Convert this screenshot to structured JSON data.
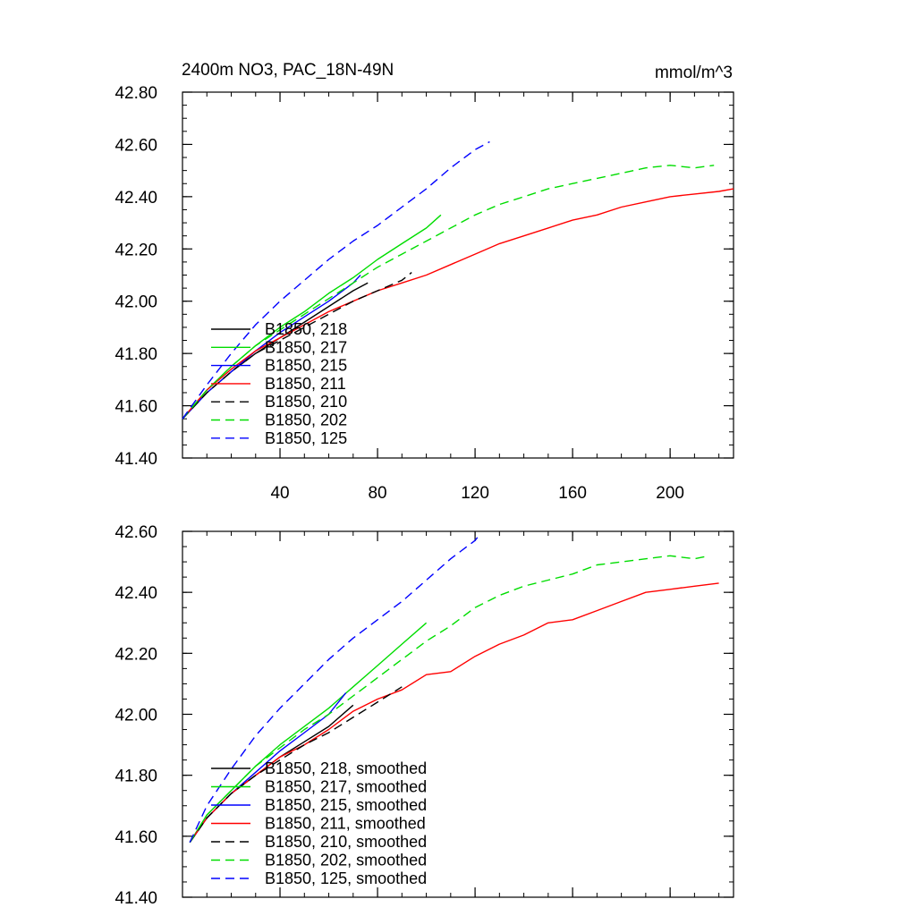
{
  "figure": {
    "title_left": "2400m NO3, PAC_18N-49N",
    "title_right": "mmol/m^3"
  },
  "chart_data": [
    {
      "type": "line",
      "title": "2400m NO3, PAC_18N-49N",
      "units": "mmol/m^3",
      "xlabel": "",
      "ylabel": "",
      "xlim": [
        0,
        226
      ],
      "ylim": [
        41.4,
        42.8
      ],
      "xticks": [
        40,
        80,
        120,
        160,
        200
      ],
      "xtick_labels": [
        "40",
        "80",
        "120",
        "160",
        "200"
      ],
      "yticks": [
        41.4,
        41.6,
        41.8,
        42.0,
        42.2,
        42.4,
        42.6,
        42.8
      ],
      "ytick_labels": [
        "41.40",
        "41.60",
        "41.80",
        "42.00",
        "42.20",
        "42.40",
        "42.60",
        "42.80"
      ],
      "grid": false,
      "legend_position": "lower-left",
      "series": [
        {
          "name": "B1850, 218",
          "color": "#000000",
          "dash": "solid",
          "x": [
            0,
            10,
            20,
            30,
            40,
            50,
            60,
            70,
            76
          ],
          "y": [
            41.55,
            41.65,
            41.73,
            41.8,
            41.86,
            41.92,
            41.98,
            42.04,
            42.07
          ]
        },
        {
          "name": "B1850, 217",
          "color": "#00dd00",
          "dash": "solid",
          "x": [
            0,
            10,
            20,
            30,
            40,
            50,
            60,
            70,
            80,
            90,
            100,
            106
          ],
          "y": [
            41.55,
            41.66,
            41.75,
            41.83,
            41.9,
            41.96,
            42.03,
            42.09,
            42.16,
            42.22,
            42.28,
            42.33
          ]
        },
        {
          "name": "B1850, 215",
          "color": "#0000ff",
          "dash": "solid",
          "x": [
            0,
            10,
            20,
            30,
            40,
            50,
            60,
            70,
            73
          ],
          "y": [
            41.55,
            41.65,
            41.73,
            41.81,
            41.88,
            41.94,
            42.0,
            42.07,
            42.1
          ]
        },
        {
          "name": "B1850, 211",
          "color": "#ff0000",
          "dash": "solid",
          "x": [
            0,
            10,
            20,
            30,
            40,
            50,
            60,
            70,
            80,
            90,
            100,
            110,
            120,
            130,
            140,
            150,
            160,
            170,
            180,
            190,
            200,
            210,
            220,
            226
          ],
          "y": [
            41.55,
            41.66,
            41.74,
            41.81,
            41.86,
            41.91,
            41.96,
            42.0,
            42.04,
            42.07,
            42.1,
            42.14,
            42.18,
            42.22,
            42.25,
            42.28,
            42.31,
            42.33,
            42.36,
            42.38,
            42.4,
            42.41,
            42.42,
            42.43
          ]
        },
        {
          "name": "B1850, 210",
          "color": "#000000",
          "dash": "dashed",
          "x": [
            0,
            10,
            20,
            30,
            40,
            50,
            60,
            70,
            80,
            90,
            94
          ],
          "y": [
            41.55,
            41.65,
            41.73,
            41.8,
            41.85,
            41.9,
            41.95,
            42.0,
            42.04,
            42.08,
            42.11
          ]
        },
        {
          "name": "B1850, 202",
          "color": "#00dd00",
          "dash": "dashed",
          "x": [
            0,
            10,
            20,
            30,
            40,
            50,
            60,
            70,
            80,
            90,
            100,
            110,
            120,
            130,
            140,
            150,
            160,
            170,
            180,
            190,
            200,
            210,
            218
          ],
          "y": [
            41.55,
            41.66,
            41.75,
            41.83,
            41.89,
            41.95,
            42.01,
            42.07,
            42.13,
            42.18,
            42.23,
            42.28,
            42.33,
            42.37,
            42.4,
            42.43,
            42.45,
            42.47,
            42.49,
            42.51,
            42.52,
            42.51,
            42.52
          ]
        },
        {
          "name": "B1850, 125",
          "color": "#0000ff",
          "dash": "dashed",
          "x": [
            0,
            10,
            20,
            30,
            40,
            50,
            60,
            70,
            80,
            90,
            100,
            110,
            120,
            126
          ],
          "y": [
            41.55,
            41.68,
            41.8,
            41.91,
            42.0,
            42.08,
            42.16,
            42.23,
            42.29,
            42.36,
            42.43,
            42.51,
            42.58,
            42.61
          ]
        }
      ]
    },
    {
      "type": "line",
      "title": "",
      "xlabel": "",
      "ylabel": "",
      "xlim": [
        0,
        226
      ],
      "ylim": [
        41.4,
        42.6
      ],
      "xticks": [
        40,
        80,
        120,
        160,
        200
      ],
      "xtick_labels": [
        "",
        "",
        "",
        "",
        ""
      ],
      "yticks": [
        41.4,
        41.6,
        41.8,
        42.0,
        42.2,
        42.4,
        42.6
      ],
      "ytick_labels": [
        "41.40",
        "41.60",
        "41.80",
        "42.00",
        "42.20",
        "42.40",
        "42.60"
      ],
      "grid": false,
      "legend_position": "lower-left",
      "series": [
        {
          "name": "B1850, 218, smoothed",
          "color": "#000000",
          "dash": "solid",
          "x": [
            3,
            10,
            20,
            30,
            40,
            50,
            60,
            70
          ],
          "y": [
            41.58,
            41.66,
            41.74,
            41.8,
            41.86,
            41.91,
            41.96,
            42.03
          ]
        },
        {
          "name": "B1850, 217, smoothed",
          "color": "#00dd00",
          "dash": "solid",
          "x": [
            3,
            10,
            20,
            30,
            40,
            50,
            60,
            70,
            80,
            90,
            100
          ],
          "y": [
            41.58,
            41.67,
            41.75,
            41.83,
            41.9,
            41.96,
            42.02,
            42.09,
            42.16,
            42.23,
            42.3
          ]
        },
        {
          "name": "B1850, 215, smoothed",
          "color": "#0000ff",
          "dash": "solid",
          "x": [
            3,
            10,
            20,
            30,
            40,
            50,
            60,
            67
          ],
          "y": [
            41.58,
            41.66,
            41.74,
            41.81,
            41.88,
            41.94,
            42.0,
            42.07
          ]
        },
        {
          "name": "B1850, 211, smoothed",
          "color": "#ff0000",
          "dash": "solid",
          "x": [
            3,
            10,
            20,
            30,
            40,
            50,
            60,
            70,
            80,
            90,
            100,
            110,
            120,
            130,
            140,
            150,
            160,
            170,
            180,
            190,
            200,
            210,
            220
          ],
          "y": [
            41.58,
            41.66,
            41.74,
            41.8,
            41.86,
            41.9,
            41.95,
            42.01,
            42.05,
            42.08,
            42.13,
            42.14,
            42.19,
            42.23,
            42.26,
            42.3,
            42.31,
            42.34,
            42.37,
            42.4,
            42.41,
            42.42,
            42.43
          ]
        },
        {
          "name": "B1850, 210, smoothed",
          "color": "#000000",
          "dash": "dashed",
          "x": [
            3,
            10,
            20,
            30,
            40,
            50,
            60,
            70,
            80,
            90
          ],
          "y": [
            41.58,
            41.66,
            41.74,
            41.8,
            41.85,
            41.9,
            41.94,
            41.99,
            42.04,
            42.09
          ]
        },
        {
          "name": "B1850, 202, smoothed",
          "color": "#00dd00",
          "dash": "dashed",
          "x": [
            3,
            10,
            20,
            30,
            40,
            50,
            60,
            70,
            80,
            90,
            100,
            110,
            120,
            130,
            140,
            150,
            160,
            170,
            180,
            190,
            200,
            210,
            216
          ],
          "y": [
            41.58,
            41.67,
            41.75,
            41.83,
            41.89,
            41.95,
            42.0,
            42.06,
            42.12,
            42.18,
            42.24,
            42.29,
            42.35,
            42.39,
            42.42,
            42.44,
            42.46,
            42.49,
            42.5,
            42.51,
            42.52,
            42.51,
            42.52
          ]
        },
        {
          "name": "B1850, 125, smoothed",
          "color": "#0000ff",
          "dash": "dashed",
          "x": [
            3,
            10,
            20,
            30,
            40,
            50,
            60,
            70,
            80,
            90,
            100,
            110,
            120,
            122
          ],
          "y": [
            41.58,
            41.7,
            41.82,
            41.93,
            42.02,
            42.1,
            42.18,
            42.25,
            42.31,
            42.37,
            42.44,
            42.51,
            42.57,
            42.59
          ]
        }
      ]
    }
  ]
}
